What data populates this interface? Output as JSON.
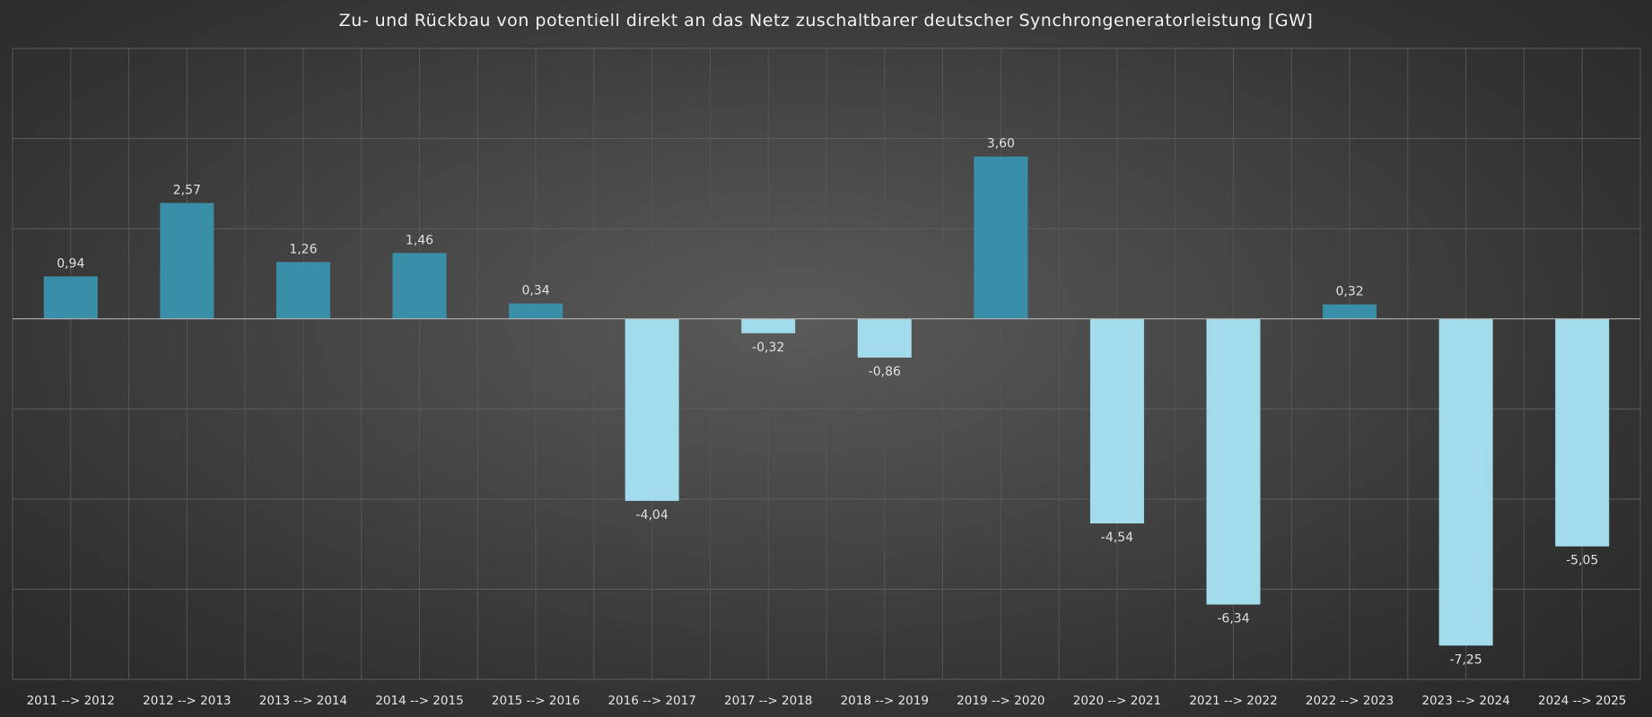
{
  "chart_data": {
    "type": "bar",
    "title": "Zu- und Rückbau von potentiell direkt an das Netz zuschaltbarer deutscher Synchrongeneratorleistung [GW]",
    "xlabel": "",
    "ylabel": "",
    "ylim": [
      -8,
      6
    ],
    "grid": true,
    "categories": [
      "2011 --> 2012",
      "2012 --> 2013",
      "2013 --> 2014",
      "2014 --> 2015",
      "2015 --> 2016",
      "2016 --> 2017",
      "2017 --> 2018",
      "2018 --> 2019",
      "2019 --> 2020",
      "2020 --> 2021",
      "2021 --> 2022",
      "2022 --> 2023",
      "2023 --> 2024",
      "2024 --> 2025"
    ],
    "values": [
      0.94,
      2.57,
      1.26,
      1.46,
      0.34,
      -4.04,
      -0.32,
      -0.86,
      3.6,
      -4.54,
      -6.34,
      0.32,
      -7.25,
      -5.05
    ],
    "data_labels": [
      "0,94",
      "2,57",
      "1,26",
      "1,46",
      "0,34",
      "-4,04",
      "-0,32",
      "-0,86",
      "3,60",
      "-4,54",
      "-6,34",
      "0,32",
      "-7,25",
      "-5,05"
    ],
    "colors": {
      "positive": "#3a8fa8",
      "negative": "#a2dcec"
    }
  }
}
